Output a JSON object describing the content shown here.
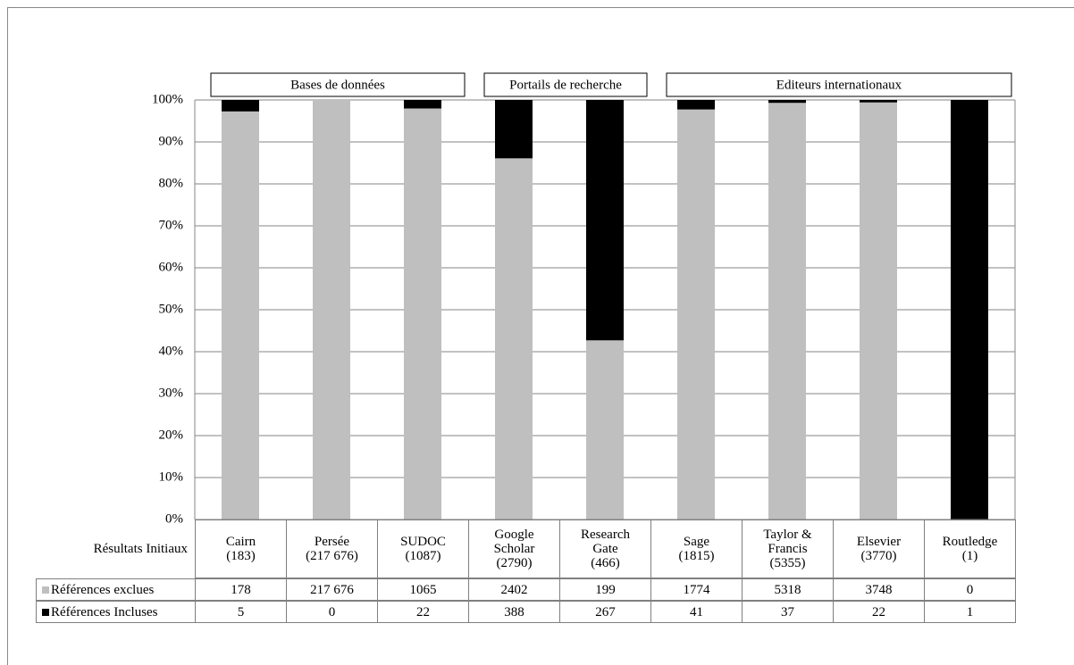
{
  "chart_data": {
    "type": "bar",
    "stacked": "percent",
    "groups": [
      "Bases de données",
      "Bases de données",
      "Bases de données",
      "Portails de recherche",
      "Portails de recherche",
      "Editeurs internationaux",
      "Editeurs internationaux",
      "Editeurs internationaux",
      "Editeurs internationaux"
    ],
    "table_header": "Résultats Initiaux",
    "categories": [
      "Cairn\n(183)",
      "Persée\n(217 676)",
      "SUDOC\n(1087)",
      "Google\nScholar\n(2790)",
      "Research\nGate\n(466)",
      "Sage\n(1815)",
      "Taylor &\nFrancis\n(5355)",
      "Elsevier\n(3770)",
      "Routledge\n(1)"
    ],
    "series": [
      {
        "name": "Références exclues",
        "color": "#bfbfbf",
        "values": [
          178,
          217676,
          1065,
          2402,
          199,
          1774,
          5318,
          3748,
          0
        ],
        "value_labels": [
          "178",
          "217 676",
          "1065",
          "2402",
          "199",
          "1774",
          "5318",
          "3748",
          "0"
        ]
      },
      {
        "name": "Références Incluses",
        "color": "#000000",
        "values": [
          5,
          0,
          22,
          388,
          267,
          41,
          37,
          22,
          1
        ]
      }
    ],
    "ylim": [
      0,
      100
    ],
    "yticks": [
      {
        "value": 0,
        "label": "0%"
      },
      {
        "value": 10,
        "label": "10%"
      },
      {
        "value": 20,
        "label": "20%"
      },
      {
        "value": 30,
        "label": "30%"
      },
      {
        "value": 40,
        "label": "40%"
      },
      {
        "value": 50,
        "label": "50%"
      },
      {
        "value": 60,
        "label": "60%"
      },
      {
        "value": 70,
        "label": "70%"
      },
      {
        "value": 80,
        "label": "80%"
      },
      {
        "value": 90,
        "label": "90%"
      },
      {
        "value": 100,
        "label": "100%"
      }
    ],
    "grid": true
  }
}
